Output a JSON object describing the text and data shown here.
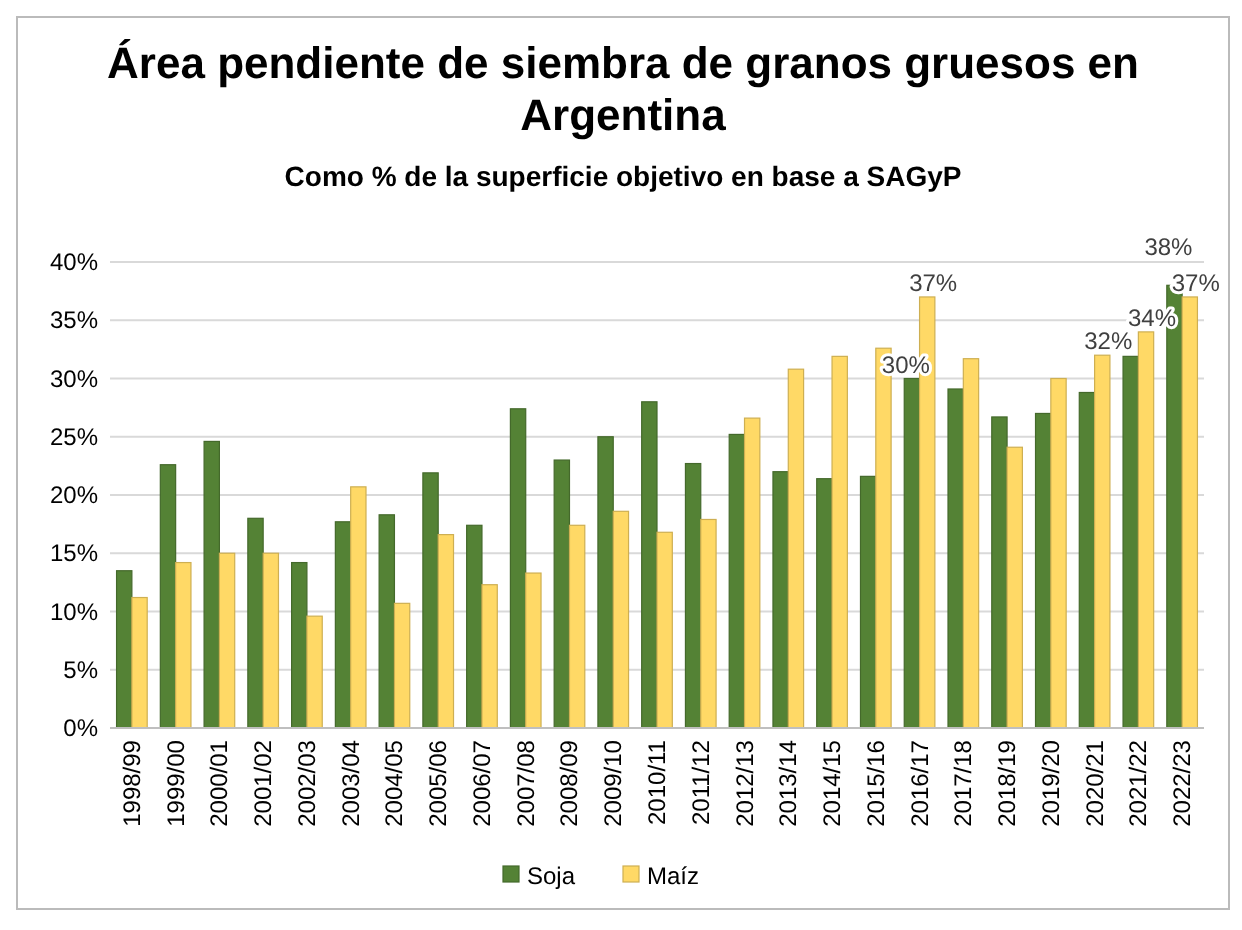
{
  "chart_data": {
    "type": "bar",
    "title": "Área pendiente de siembra de granos gruesos en Argentina",
    "subtitle": "Como % de la superficie objetivo en base a SAGyP",
    "categories": [
      "1998/99",
      "1999/00",
      "2000/01",
      "2001/02",
      "2002/03",
      "2003/04",
      "2004/05",
      "2005/06",
      "2006/07",
      "2007/08",
      "2008/09",
      "2009/10",
      "2010/11",
      "2011/12",
      "2012/13",
      "2013/14",
      "2014/15",
      "2015/16",
      "2016/17",
      "2017/18",
      "2018/19",
      "2019/20",
      "2020/21",
      "2021/22",
      "2022/23"
    ],
    "series": [
      {
        "name": "Soja",
        "color": "#548235",
        "values": [
          13.5,
          22.6,
          24.6,
          18.0,
          14.2,
          17.7,
          18.3,
          21.9,
          17.4,
          27.4,
          23.0,
          25.0,
          28.0,
          22.7,
          25.2,
          22.0,
          21.4,
          21.6,
          30,
          29.1,
          26.7,
          27.0,
          28.8,
          31.9,
          38
        ],
        "value_labels": [
          null,
          null,
          null,
          null,
          null,
          null,
          null,
          null,
          null,
          null,
          null,
          null,
          null,
          null,
          null,
          null,
          null,
          null,
          "30%",
          null,
          null,
          null,
          null,
          null,
          "38%"
        ]
      },
      {
        "name": "Maíz",
        "color": "#ffd966",
        "values": [
          11.2,
          14.2,
          15.0,
          15.0,
          9.6,
          20.7,
          10.7,
          16.6,
          12.3,
          13.3,
          17.4,
          18.6,
          16.8,
          17.9,
          26.6,
          30.8,
          31.9,
          32.6,
          37,
          31.7,
          24.1,
          30.0,
          32,
          34,
          37
        ],
        "value_labels": [
          null,
          null,
          null,
          null,
          null,
          null,
          null,
          null,
          null,
          null,
          null,
          null,
          null,
          null,
          null,
          null,
          null,
          null,
          "37%",
          null,
          null,
          null,
          "32%",
          "34%",
          "37%"
        ]
      }
    ],
    "ylim": [
      0,
      40
    ],
    "yticks": [
      {
        "value": 0,
        "label": "0%"
      },
      {
        "value": 5,
        "label": "5%"
      },
      {
        "value": 10,
        "label": "10%"
      },
      {
        "value": 15,
        "label": "15%"
      },
      {
        "value": 20,
        "label": "20%"
      },
      {
        "value": 25,
        "label": "25%"
      },
      {
        "value": 30,
        "label": "30%"
      },
      {
        "value": 35,
        "label": "35%"
      },
      {
        "value": 40,
        "label": "40%"
      }
    ],
    "grid": "y",
    "legend": "bottom"
  }
}
